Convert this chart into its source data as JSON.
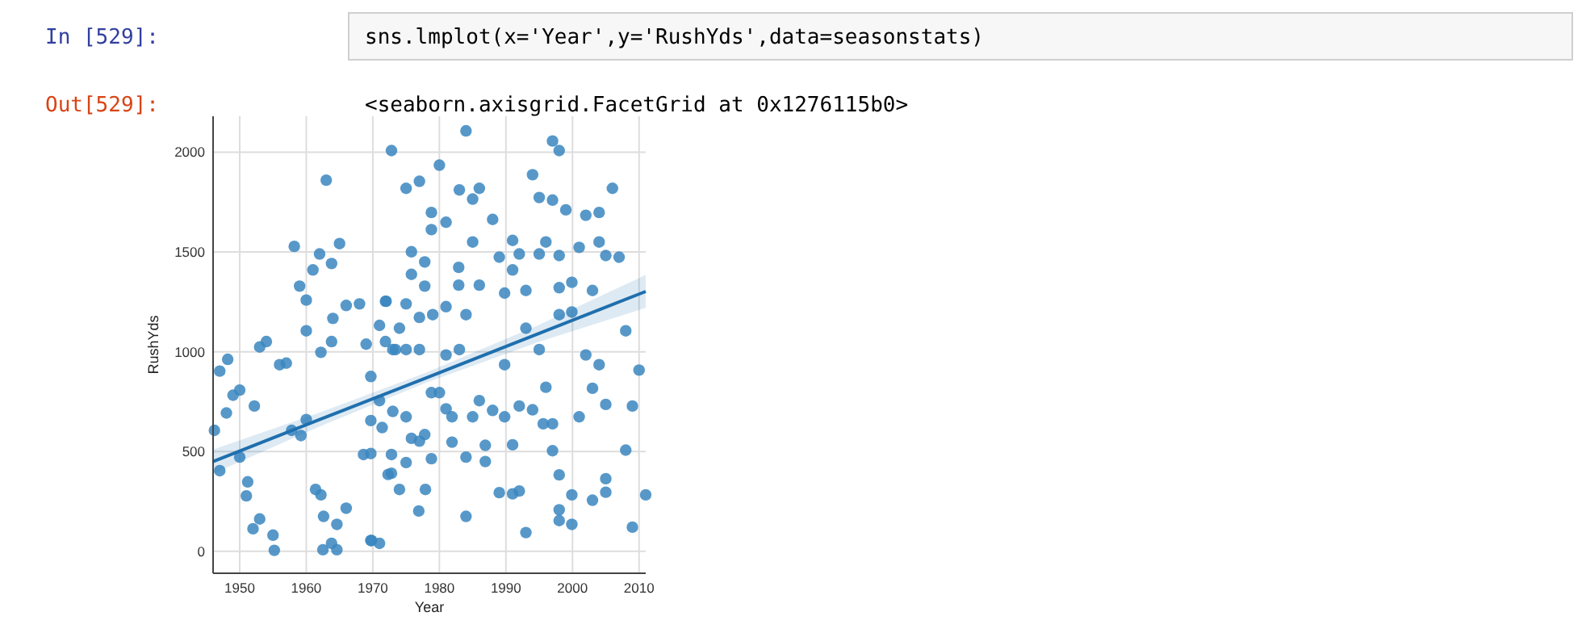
{
  "chart_data": {
    "type": "scatter",
    "xlabel": "Year",
    "ylabel": "RushYds",
    "xlim": [
      1946,
      2011
    ],
    "xticks": [
      1950,
      1960,
      1970,
      1980,
      1990,
      2000,
      2010
    ],
    "ylim": [
      -110,
      2180
    ],
    "yticks": [
      0,
      500,
      1000,
      1500,
      2000
    ],
    "grid": true,
    "annotations": [
      "In [529]:",
      "sns.lmplot(x='Year',y='RushYds',data=seasonstats)",
      "Out[529]:",
      "<seaborn.axisgrid.FacetGrid at 0x1276115b0>"
    ],
    "series": [
      {
        "type": "scatter",
        "marker": "circle",
        "color": "#3a86c0",
        "x": [
          1946.2,
          1947,
          1948.2,
          1947,
          1948,
          1949,
          1950,
          1950,
          1951,
          1951.2,
          1952.2,
          1953,
          1954,
          1952,
          1953,
          1955,
          1955.2,
          1956,
          1957,
          1957.8,
          1958.2,
          1959,
          1960,
          1960,
          1961,
          1962,
          1963,
          1963.8,
          1965,
          1962.2,
          1963.8,
          1964,
          1962.2,
          1962.5,
          1963.8,
          1964.6,
          1964.6,
          1966,
          1966,
          1968,
          1969,
          1968.6,
          1969.8,
          1971,
          1972,
          1973.4,
          1971.4,
          1972.3,
          1959.2,
          1960,
          1961.4,
          1962.6,
          1972.8,
          1980,
          1975,
          1977,
          1978.8,
          1978.8,
          1981,
          1983,
          1984,
          1985,
          1986,
          1988,
          1994,
          1995,
          1997,
          1998,
          1997,
          1999,
          2002,
          2004,
          2006,
          1991,
          1992,
          1995,
          1996,
          1998,
          2001,
          2004,
          2005,
          2007,
          1975.8,
          1975.8,
          1977.8,
          1977.8,
          1982.9,
          1982.9,
          1985,
          1989,
          1991,
          1993,
          1998,
          1999.9,
          2003,
          1971.9,
          1975,
          1971,
          1971.9,
          1974,
          1977,
          1979,
          1981,
          1984,
          1986,
          1989.8,
          1973,
          1975,
          1977,
          1981,
          1983,
          1989.8,
          1993,
          1995,
          1998,
          1999.9,
          2002,
          2004,
          2010,
          2008,
          1969.7,
          1971,
          1973,
          1975,
          1975.8,
          1977.8,
          1978.8,
          1980,
          1981,
          1981.9,
          1981.9,
          1985,
          1986,
          1988,
          1989.8,
          1992,
          1994,
          1995.6,
          1997,
          1996,
          2001,
          2003,
          2005,
          2009,
          1969.7,
          1969.7,
          1972.8,
          1972.8,
          1975,
          1977,
          1978.8,
          1984,
          1986.9,
          1986.9,
          1991,
          1997,
          1998,
          2008,
          2005,
          1974,
          1977.9,
          1976.9,
          1989,
          1991,
          1992,
          1993,
          1984,
          1998,
          1998,
          1999.9,
          1999.9,
          2003,
          2005,
          2009,
          2011,
          1969.7
        ],
        "values": [
          606,
          903,
          962,
          404,
          693,
          782,
          808,
          472,
          278,
          348,
          728,
          1024,
          1051,
          113,
          162,
          81,
          5,
          935,
          943,
          606,
          1528,
          1329,
          1259,
          1105,
          1410,
          1490,
          1860,
          1442,
          1542,
          997,
          1051,
          1167,
          283,
          8,
          40,
          8,
          135,
          216,
          1232,
          1240,
          1038,
          485,
          54,
          40,
          1253,
          1011,
          620,
          385,
          580,
          660,
          310,
          175,
          2008,
          1935,
          1819,
          1854,
          1698,
          1612,
          1649,
          1811,
          2107,
          1765,
          1819,
          1663,
          1887,
          1773,
          2056,
          2008,
          1760,
          1711,
          1684,
          1698,
          1819,
          1558,
          1490,
          1490,
          1550,
          1482,
          1523,
          1550,
          1482,
          1474,
          1501,
          1388,
          1450,
          1329,
          1334,
          1423,
          1550,
          1474,
          1410,
          1307,
          1321,
          1348,
          1307,
          1253,
          1240,
          1132,
          1051,
          1118,
          1172,
          1186,
          1226,
          1186,
          1334,
          1294,
          1011,
          1011,
          1011,
          984,
          1011,
          935,
          1118,
          1011,
          1186,
          1199,
          984,
          935,
          908,
          1105,
          876,
          755,
          701,
          674,
          566,
          585,
          795,
          795,
          714,
          674,
          547,
          674,
          755,
          706,
          674,
          728,
          709,
          639,
          639,
          822,
          674,
          817,
          736,
          728,
          655,
          490,
          485,
          391,
          445,
          552,
          464,
          472,
          531,
          450,
          534,
          504,
          383,
          507,
          364,
          310,
          310,
          202,
          294,
          288,
          302,
          94,
          175,
          208,
          154,
          135,
          283,
          256,
          296,
          121,
          283,
          54
        ]
      },
      {
        "type": "line",
        "color": "#1f6fae",
        "x": [
          1946,
          1962,
          1978,
          1995,
          2011
        ],
        "values": [
          450,
          660,
          869,
          1092,
          1302
        ],
        "lower": [
          390,
          625,
          845,
          1050,
          1220
        ],
        "upper": [
          510,
          695,
          895,
          1135,
          1385
        ]
      }
    ]
  }
}
